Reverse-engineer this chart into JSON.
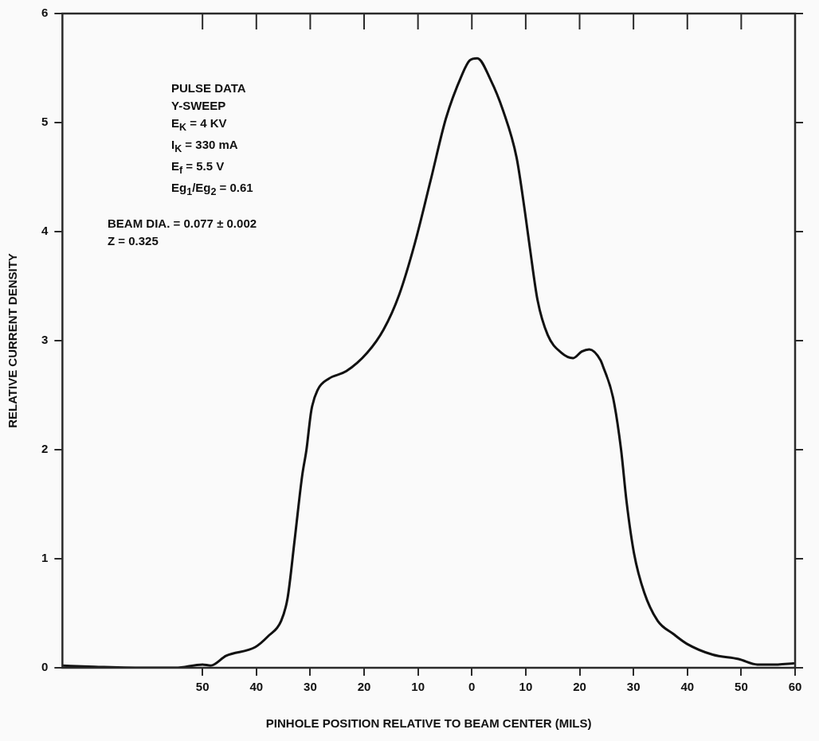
{
  "chart_data": {
    "type": "line",
    "xlabel": "PINHOLE POSITION RELATIVE TO BEAM CENTER (MILS)",
    "ylabel": "RELATIVE CURRENT DENSITY",
    "annotations": [
      "PULSE DATA",
      "Y-SWEEP",
      "E$_{K}$ = 4 KV",
      "I$_{K}$ = 330 mA",
      "E$_{f}$ = 5.5 V",
      "Eg$_{1}$/Eg$_{2}$ = 0.61",
      "BEAM DIA. = 0.077 ± 0.002",
      "Z = 0.325"
    ],
    "x": [
      -76,
      -70,
      -60,
      -55,
      -50,
      -48.5,
      -45.6,
      -40.2,
      -37.8,
      -35.4,
      -34.2,
      -32.9,
      -31.5,
      -30.7,
      -29.8,
      -28.6,
      -26.6,
      -23.3,
      -19.4,
      -16.4,
      -13.5,
      -10.6,
      -7.7,
      -4.8,
      -1.9,
      -0.4,
      1.0,
      3.5,
      5.8,
      8.3,
      9.8,
      10.8,
      12.2,
      14.1,
      16.6,
      18.8,
      20.4,
      21.8,
      23.9,
      24.3,
      26.2,
      27.7,
      28.7,
      30.1,
      32.0,
      34.5,
      37.4,
      39.9,
      44.7,
      49.5,
      53,
      56.8,
      59.7
    ],
    "series": [
      {
        "color": "#111111",
        "values": [
          0.02,
          0.01,
          0.0,
          0.0,
          0.03,
          0.02,
          0.11,
          0.19,
          0.29,
          0.43,
          0.64,
          1.17,
          1.76,
          2.0,
          2.36,
          2.55,
          2.65,
          2.72,
          2.89,
          3.1,
          3.42,
          3.89,
          4.46,
          5.04,
          5.43,
          5.57,
          5.59,
          5.39,
          5.11,
          4.68,
          4.2,
          3.84,
          3.37,
          3.05,
          2.89,
          2.84,
          2.9,
          2.92,
          2.82,
          2.77,
          2.48,
          2.0,
          1.53,
          1.05,
          0.69,
          0.43,
          0.31,
          0.22,
          0.12,
          0.08,
          0.03,
          0.03,
          0.04
        ]
      }
    ],
    "xlim": [
      -76,
      60
    ],
    "xticks": [
      {
        "value": -50,
        "label": "50"
      },
      {
        "value": -40,
        "label": "40"
      },
      {
        "value": -30,
        "label": "30"
      },
      {
        "value": -20,
        "label": "20"
      },
      {
        "value": -10,
        "label": "10"
      },
      0,
      10,
      20,
      30,
      40,
      50,
      60
    ],
    "ylim": [
      0,
      6
    ],
    "yticks": [
      0,
      1,
      2,
      3,
      4,
      5,
      6
    ],
    "grid": false,
    "legend": false,
    "marker": "none",
    "line_style": "solid"
  }
}
